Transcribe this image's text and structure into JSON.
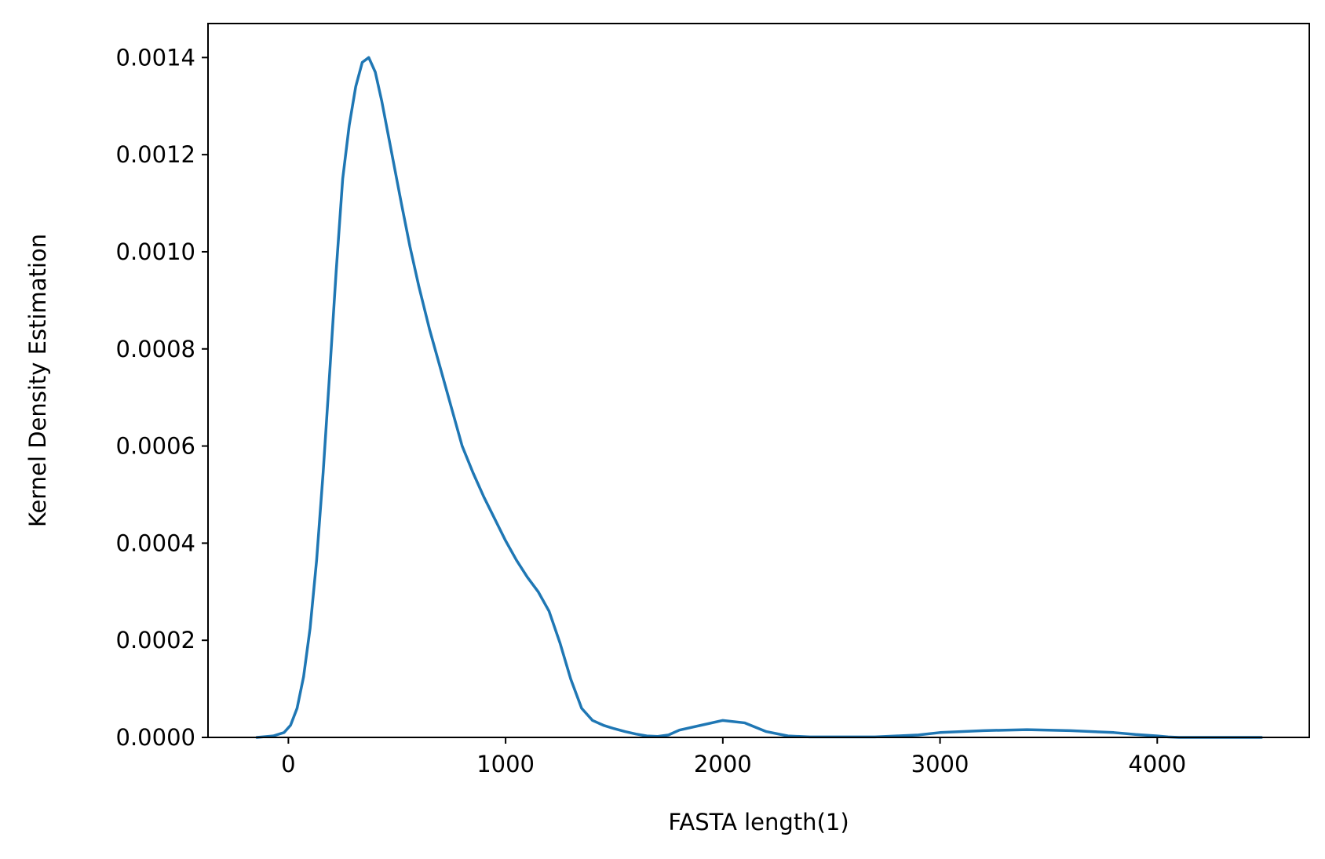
{
  "chart_data": {
    "type": "line",
    "title": "",
    "xlabel": "FASTA length(1)",
    "ylabel": "Kernel Density Estimation",
    "xlim": [
      -370,
      4700
    ],
    "ylim": [
      0,
      0.00147
    ],
    "x_ticks": [
      0,
      1000,
      2000,
      3000,
      4000
    ],
    "x_tick_labels": [
      "0",
      "1000",
      "2000",
      "3000",
      "4000"
    ],
    "y_ticks": [
      0,
      0.0002,
      0.0004,
      0.0006,
      0.0008,
      0.001,
      0.0012,
      0.0014
    ],
    "y_tick_labels": [
      "0.0000",
      "0.0002",
      "0.0004",
      "0.0006",
      "0.0008",
      "0.0010",
      "0.0012",
      "0.0014"
    ],
    "grid": false,
    "legend": "none",
    "line_color": "#1f77b4",
    "series": [
      {
        "x": [
          -145,
          -70,
          -20,
          10,
          40,
          70,
          100,
          130,
          160,
          190,
          220,
          250,
          280,
          310,
          340,
          370,
          400,
          430,
          460,
          490,
          520,
          560,
          600,
          650,
          700,
          750,
          800,
          850,
          900,
          950,
          1000,
          1050,
          1100,
          1150,
          1200,
          1250,
          1300,
          1350,
          1400,
          1450,
          1500,
          1550,
          1600,
          1650,
          1700,
          1750,
          1800,
          1900,
          2000,
          2100,
          2200,
          2300,
          2400,
          2500,
          2560,
          2620,
          2700,
          2800,
          2900,
          3000,
          3200,
          3400,
          3600,
          3800,
          3900,
          4000,
          4050,
          4100,
          4150,
          4200,
          4250,
          4300,
          4350,
          4400,
          4480
        ],
        "y": [
          0,
          3e-06,
          1e-05,
          2.5e-05,
          6e-05,
          0.000125,
          0.000225,
          0.000365,
          0.000545,
          0.00075,
          0.00096,
          0.00115,
          0.00126,
          0.00134,
          0.00139,
          0.0014,
          0.00137,
          0.00131,
          0.00124,
          0.00117,
          0.0011,
          0.00101,
          0.00093,
          0.00084,
          0.00076,
          0.00068,
          0.0006,
          0.000545,
          0.000495,
          0.00045,
          0.000405,
          0.000365,
          0.00033,
          0.0003,
          0.00026,
          0.000195,
          0.00012,
          6e-05,
          3.5e-05,
          2.5e-05,
          1.8e-05,
          1.2e-05,
          7e-06,
          3e-06,
          2e-06,
          5e-06,
          1.5e-05,
          2.5e-05,
          3.5e-05,
          3e-05,
          1.2e-05,
          3e-06,
          1e-06,
          1e-06,
          1e-06,
          1e-06,
          1e-06,
          3e-06,
          5e-06,
          1e-05,
          1.4e-05,
          1.6e-05,
          1.4e-05,
          1e-05,
          6e-06,
          3e-06,
          1e-06,
          0,
          0,
          0,
          0,
          0,
          0,
          0,
          0
        ],
        "x_extra": [],
        "label": ""
      }
    ]
  }
}
